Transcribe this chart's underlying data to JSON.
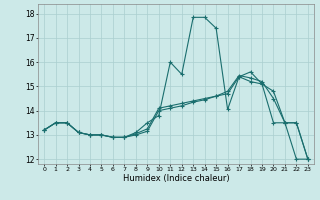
{
  "title": "",
  "xlabel": "Humidex (Indice chaleur)",
  "xlim": [
    -0.5,
    23.5
  ],
  "ylim": [
    11.8,
    18.4
  ],
  "yticks": [
    12,
    13,
    14,
    15,
    16,
    17,
    18
  ],
  "xticks": [
    0,
    1,
    2,
    3,
    4,
    5,
    6,
    7,
    8,
    9,
    10,
    11,
    12,
    13,
    14,
    15,
    16,
    17,
    18,
    19,
    20,
    21,
    22,
    23
  ],
  "bg_color": "#cce9e8",
  "grid_color": "#aacfcf",
  "line_color": "#1a6e6e",
  "curve1_x": [
    0,
    1,
    2,
    3,
    4,
    5,
    6,
    7,
    8,
    9,
    10,
    11,
    12,
    13,
    14,
    15,
    16,
    17,
    18,
    19,
    20,
    21,
    22,
    23
  ],
  "curve1_y": [
    13.2,
    13.5,
    13.5,
    13.1,
    13.0,
    13.0,
    12.9,
    12.9,
    13.1,
    13.5,
    13.8,
    16.0,
    15.5,
    17.85,
    17.85,
    17.4,
    14.05,
    15.4,
    15.6,
    15.1,
    13.5,
    13.5,
    12.0,
    12.0
  ],
  "curve2_x": [
    0,
    1,
    2,
    3,
    4,
    5,
    6,
    7,
    8,
    9,
    10,
    11,
    12,
    13,
    14,
    15,
    16,
    17,
    18,
    19,
    20,
    21,
    22,
    23
  ],
  "curve2_y": [
    13.2,
    13.5,
    13.5,
    13.1,
    13.0,
    13.0,
    12.9,
    12.9,
    13.05,
    13.25,
    14.1,
    14.2,
    14.3,
    14.4,
    14.5,
    14.6,
    14.7,
    15.4,
    15.2,
    15.1,
    14.8,
    13.5,
    13.5,
    12.0
  ],
  "curve3_x": [
    0,
    1,
    2,
    3,
    4,
    5,
    6,
    7,
    8,
    9,
    10,
    11,
    12,
    13,
    14,
    15,
    16,
    17,
    18,
    19,
    20,
    21,
    22,
    23
  ],
  "curve3_y": [
    13.2,
    13.5,
    13.5,
    13.1,
    13.0,
    13.0,
    12.9,
    12.9,
    13.0,
    13.15,
    14.0,
    14.1,
    14.2,
    14.35,
    14.45,
    14.6,
    14.8,
    15.45,
    15.35,
    15.2,
    14.5,
    13.5,
    13.5,
    12.0
  ]
}
